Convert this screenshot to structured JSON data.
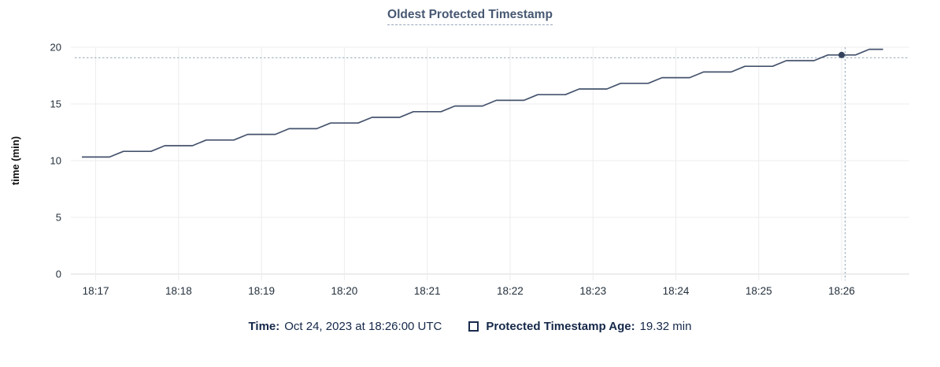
{
  "chart_data": {
    "type": "line",
    "title": "Oldest Protected Timestamp",
    "xlabel": "",
    "ylabel": "time (min)",
    "ylim": [
      0,
      20
    ],
    "yticks": [
      0,
      5,
      10,
      15,
      20
    ],
    "xtick_labels": [
      "18:17",
      "18:18",
      "18:19",
      "18:20",
      "18:21",
      "18:22",
      "18:23",
      "18:24",
      "18:25",
      "18:26"
    ],
    "x_range": [
      "18:16:42",
      "18:26:49"
    ],
    "grid": true,
    "legend_position": "bottom",
    "series": [
      {
        "name": "Protected Timestamp Age",
        "times": [
          "18:16:50",
          "18:17:00",
          "18:17:10",
          "18:17:20",
          "18:17:30",
          "18:17:40",
          "18:17:50",
          "18:18:00",
          "18:18:10",
          "18:18:20",
          "18:18:30",
          "18:18:40",
          "18:18:50",
          "18:19:00",
          "18:19:10",
          "18:19:20",
          "18:19:30",
          "18:19:40",
          "18:19:50",
          "18:20:00",
          "18:20:10",
          "18:20:20",
          "18:20:30",
          "18:20:40",
          "18:20:50",
          "18:21:00",
          "18:21:10",
          "18:21:20",
          "18:21:30",
          "18:21:40",
          "18:21:50",
          "18:22:00",
          "18:22:10",
          "18:22:20",
          "18:22:30",
          "18:22:40",
          "18:22:50",
          "18:23:00",
          "18:23:10",
          "18:23:20",
          "18:23:30",
          "18:23:40",
          "18:23:50",
          "18:24:00",
          "18:24:10",
          "18:24:20",
          "18:24:30",
          "18:24:40",
          "18:24:50",
          "18:25:00",
          "18:25:10",
          "18:25:20",
          "18:25:30",
          "18:25:40",
          "18:25:50",
          "18:26:00",
          "18:26:10",
          "18:26:20",
          "18:26:30"
        ],
        "values": [
          10.32,
          10.32,
          10.32,
          10.82,
          10.82,
          10.82,
          11.32,
          11.32,
          11.32,
          11.82,
          11.82,
          11.82,
          12.32,
          12.32,
          12.32,
          12.82,
          12.82,
          12.82,
          13.32,
          13.32,
          13.32,
          13.82,
          13.82,
          13.82,
          14.32,
          14.32,
          14.32,
          14.82,
          14.82,
          14.82,
          15.32,
          15.32,
          15.32,
          15.82,
          15.82,
          15.82,
          16.32,
          16.32,
          16.32,
          16.82,
          16.82,
          16.82,
          17.32,
          17.32,
          17.32,
          17.82,
          17.82,
          17.82,
          18.32,
          18.32,
          18.32,
          18.82,
          18.82,
          18.82,
          19.32,
          19.32,
          19.32,
          19.82,
          19.82
        ]
      }
    ],
    "hover": {
      "time": "18:26:00",
      "value": 19.32
    }
  },
  "footer": {
    "time_label": "Time:",
    "time_value": "Oct 24, 2023 at 18:26:00 UTC",
    "series_label": "Protected Timestamp Age:",
    "series_value": "19.32 min"
  },
  "colors": {
    "line": "#45536d",
    "dot": "#33425c",
    "grid": "#ececec",
    "axis": "#e9ebee",
    "crosshair": "#9cb0c0",
    "title": "#475872",
    "tick_text": "#24303c",
    "legend_text": "#152849"
  }
}
